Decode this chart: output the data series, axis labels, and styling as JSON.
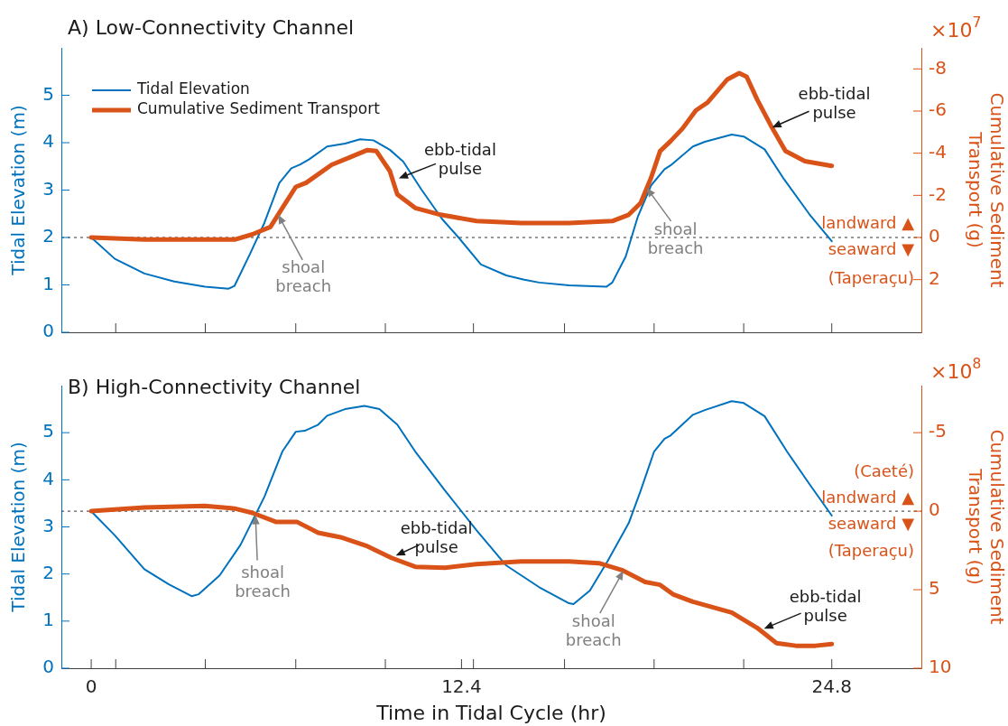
{
  "chart_data": [
    {
      "type": "line",
      "title": "A) Low-Connectivity Channel",
      "ylabel": "Tidal Elevation (m)",
      "y2label": "Cumulative Sediment Transport (g)",
      "xlim": [
        -1,
        27.8
      ],
      "xticks": [
        {
          "value": 0.82,
          "label": null
        },
        {
          "value": 3.82,
          "label": null
        },
        {
          "value": 6.85,
          "label": null
        },
        {
          "value": 9.85,
          "label": null
        },
        {
          "value": 12.8,
          "label": null
        },
        {
          "value": 15.85,
          "label": null
        },
        {
          "value": 18.85,
          "label": null
        },
        {
          "value": 21.85,
          "label": null
        },
        {
          "value": 24.8,
          "label": null
        }
      ],
      "ylim": [
        0,
        6
      ],
      "yticks": [
        0,
        1,
        2,
        3,
        4,
        5
      ],
      "y2lim": [
        4.5,
        -9
      ],
      "y2ticks": [
        -8,
        -6,
        -4,
        -2,
        0,
        2
      ],
      "tick_labels": "y",
      "grid": false,
      "legend": "top left",
      "marker": "none",
      "series": [
        {
          "name": "Tidal Elevation",
          "color": "#0072bd",
          "x": [
            0,
            0.79,
            1.78,
            2.78,
            3.81,
            4.6,
            4.8,
            5.3,
            5.8,
            6.3,
            6.7,
            7.0,
            7.3,
            7.9,
            8.5,
            9.0,
            9.45,
            10.0,
            10.45,
            11.05,
            11.75,
            12.3,
            13.05,
            13.9,
            14.5,
            15.0,
            16.0,
            17.25,
            17.45,
            17.9,
            18.3,
            18.75,
            19.2,
            19.4,
            20.15,
            20.55,
            21.45,
            21.85,
            22.55,
            23.2,
            24.05,
            24.8
          ],
          "values": [
            2.0,
            1.55,
            1.24,
            1.07,
            0.96,
            0.92,
            0.98,
            1.63,
            2.31,
            3.15,
            3.46,
            3.54,
            3.65,
            3.92,
            3.98,
            4.07,
            4.05,
            3.85,
            3.6,
            3.02,
            2.39,
            2.0,
            1.43,
            1.2,
            1.11,
            1.05,
            0.99,
            0.96,
            1.05,
            1.6,
            2.43,
            3.1,
            3.44,
            3.52,
            3.92,
            4.02,
            4.17,
            4.13,
            3.86,
            3.23,
            2.49,
            1.92
          ]
        },
        {
          "name": "Cumulative Sediment Transport",
          "color": "#d95319",
          "axis": "y2",
          "x": [
            0,
            1.78,
            4.8,
            5.4,
            6.0,
            6.4,
            6.85,
            7.2,
            8.05,
            8.65,
            9.25,
            9.55,
            10.0,
            10.25,
            10.85,
            11.7,
            12.9,
            14.4,
            16.0,
            17.45,
            18.0,
            18.4,
            18.75,
            19.05,
            19.4,
            19.8,
            20.25,
            20.65,
            21.3,
            21.7,
            21.95,
            22.3,
            22.75,
            23.25,
            23.9,
            24.8
          ],
          "values": [
            0,
            0.1,
            0.1,
            -0.15,
            -0.5,
            -1.4,
            -2.4,
            -2.6,
            -3.45,
            -3.8,
            -4.15,
            -4.1,
            -3.15,
            -2.05,
            -1.4,
            -1.08,
            -0.78,
            -0.69,
            -0.69,
            -0.78,
            -1.08,
            -1.64,
            -2.84,
            -4.1,
            -4.57,
            -5.17,
            -6.03,
            -6.42,
            -7.5,
            -7.8,
            -7.63,
            -6.55,
            -5.34,
            -4.1,
            -3.62,
            -3.4
          ]
        }
      ],
      "ref_lines": [
        {
          "axis": "y2",
          "value": 0,
          "color": "#333333",
          "line_style": "dashed"
        }
      ],
      "annotations": [
        "×10$^{7}$",
        "landward ▲",
        "seaward ▼",
        "(Taperaçu)",
        {
          "text": "shoal breach",
          "x": 6.26,
          "y": 2.48
        },
        {
          "text": "ebb-tidal pulse",
          "x": 10.3,
          "y": 3.25
        },
        {
          "text": "shoal breach",
          "x": 18.6,
          "y": 3.05
        },
        {
          "text": "ebb-tidal pulse",
          "x": 22.8,
          "y": 4.32
        }
      ]
    },
    {
      "type": "line",
      "title": "B) High-Connectivity Channel",
      "xlabel": "Time in Tidal Cycle (hr)",
      "ylabel": "Tidal Elevation (m)",
      "y2label": "Cumulative Sediment Transport (g)",
      "xlim": [
        -1,
        27.8
      ],
      "xticks": [
        0,
        {
          "value": 0.82,
          "label": null
        },
        {
          "value": 3.82,
          "label": null
        },
        {
          "value": 6.85,
          "label": null
        },
        {
          "value": 9.85,
          "label": null
        },
        12.4,
        {
          "value": 12.8,
          "label": null
        },
        {
          "value": 15.85,
          "label": null
        },
        {
          "value": 18.85,
          "label": null
        },
        {
          "value": 21.85,
          "label": null
        },
        24.8
      ],
      "ylim": [
        0,
        6
      ],
      "yticks": [
        0,
        1,
        2,
        3,
        4,
        5
      ],
      "y2lim": [
        10,
        -8
      ],
      "y2ticks": [
        -5,
        0,
        5,
        10
      ],
      "grid": false,
      "marker": "none",
      "series": [
        {
          "color": "#0072bd",
          "x": [
            0,
            0.79,
            1.78,
            2.6,
            3.36,
            3.6,
            4.3,
            5.0,
            5.8,
            6.4,
            6.85,
            7.15,
            7.6,
            7.9,
            8.5,
            9.15,
            9.65,
            10.25,
            10.85,
            11.85,
            12.9,
            13.9,
            15.0,
            16.0,
            16.15,
            16.7,
            17.3,
            18.0,
            18.4,
            18.85,
            19.2,
            19.4,
            20.15,
            20.55,
            21.45,
            21.85,
            22.55,
            23.3,
            24.05,
            24.8
          ],
          "values": [
            3.33,
            2.82,
            2.1,
            1.78,
            1.53,
            1.57,
            1.97,
            2.62,
            3.64,
            4.6,
            5.02,
            5.04,
            5.17,
            5.36,
            5.5,
            5.57,
            5.5,
            5.17,
            4.6,
            3.77,
            2.93,
            2.18,
            1.72,
            1.38,
            1.36,
            1.65,
            2.28,
            3.08,
            3.77,
            4.6,
            4.87,
            4.94,
            5.38,
            5.48,
            5.67,
            5.63,
            5.35,
            4.6,
            3.91,
            3.24
          ]
        },
        {
          "color": "#d95319",
          "axis": "y2",
          "x": [
            0,
            1.78,
            3.8,
            4.8,
            5.4,
            6.2,
            6.9,
            7.6,
            8.35,
            9.25,
            10.05,
            10.85,
            11.85,
            12.9,
            14.4,
            16.0,
            17.0,
            17.8,
            18.55,
            19.05,
            19.5,
            20.15,
            21.45,
            22.3,
            22.95,
            23.6,
            24.25,
            24.8
          ],
          "values": [
            0,
            -0.23,
            -0.34,
            -0.17,
            0.11,
            0.69,
            0.69,
            1.37,
            1.66,
            2.23,
            2.97,
            3.54,
            3.6,
            3.37,
            3.2,
            3.2,
            3.31,
            3.77,
            4.51,
            4.69,
            5.31,
            5.77,
            6.46,
            7.43,
            8.4,
            8.57,
            8.57,
            8.46
          ]
        }
      ],
      "ref_lines": [
        {
          "axis": "y2",
          "value": 0,
          "color": "#333333",
          "line_style": "dashed"
        }
      ],
      "annotations": [
        "×10$^{8}$",
        "(Caeté)",
        "landward ▲",
        "seaward ▼",
        "(Taperaçu)",
        {
          "text": "shoal breach",
          "x": 5.5,
          "y": 3.25
        },
        {
          "text": "ebb-tidal pulse",
          "x": 10.2,
          "y": 2.39
        },
        {
          "text": "shoal breach",
          "x": 17.82,
          "y": 2.07
        },
        {
          "text": "ebb-tidal pulse",
          "x": 22.53,
          "y": 0.84
        }
      ]
    }
  ]
}
